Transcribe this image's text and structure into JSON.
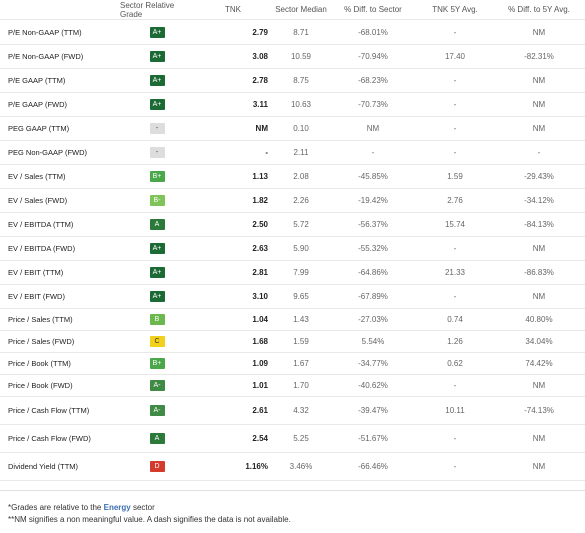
{
  "header": {
    "grade": "Sector Relative Grade",
    "tnk": "TNK",
    "median": "Sector Median",
    "diff": "% Diff. to Sector",
    "five_year": "TNK 5Y Avg.",
    "diff_five_year": "% Diff. to 5Y Avg."
  },
  "grade_colors": {
    "A+": "#1d6b34",
    "A": "#2c7a3a",
    "A-": "#3f8a44",
    "B+": "#4aa84a",
    "B": "#6ab84e",
    "B-": "#7fc35a",
    "C": "#f2d11c",
    "D": "#d53b2c",
    "-": "#dddddd"
  },
  "rows": [
    {
      "metric": "P/E Non-GAAP (TTM)",
      "grade": "A+",
      "tnk": "2.79",
      "median": "8.71",
      "diff": "-68.01%",
      "five_year": "-",
      "diff_five_year": "NM"
    },
    {
      "metric": "P/E Non-GAAP (FWD)",
      "grade": "A+",
      "tnk": "3.08",
      "median": "10.59",
      "diff": "-70.94%",
      "five_year": "17.40",
      "diff_five_year": "-82.31%"
    },
    {
      "metric": "P/E GAAP (TTM)",
      "grade": "A+",
      "tnk": "2.78",
      "median": "8.75",
      "diff": "-68.23%",
      "five_year": "-",
      "diff_five_year": "NM"
    },
    {
      "metric": "P/E GAAP (FWD)",
      "grade": "A+",
      "tnk": "3.11",
      "median": "10.63",
      "diff": "-70.73%",
      "five_year": "-",
      "diff_five_year": "NM"
    },
    {
      "metric": "PEG GAAP (TTM)",
      "grade": "-",
      "tnk": "NM",
      "median": "0.10",
      "diff": "NM",
      "five_year": "-",
      "diff_five_year": "NM"
    },
    {
      "metric": "PEG Non-GAAP (FWD)",
      "grade": "-",
      "tnk": "-",
      "median": "2.11",
      "diff": "-",
      "five_year": "-",
      "diff_five_year": "-"
    },
    {
      "metric": "EV / Sales (TTM)",
      "grade": "B+",
      "tnk": "1.13",
      "median": "2.08",
      "diff": "-45.85%",
      "five_year": "1.59",
      "diff_five_year": "-29.43%"
    },
    {
      "metric": "EV / Sales (FWD)",
      "grade": "B-",
      "tnk": "1.82",
      "median": "2.26",
      "diff": "-19.42%",
      "five_year": "2.76",
      "diff_five_year": "-34.12%"
    },
    {
      "metric": "EV / EBITDA (TTM)",
      "grade": "A",
      "tnk": "2.50",
      "median": "5.72",
      "diff": "-56.37%",
      "five_year": "15.74",
      "diff_five_year": "-84.13%"
    },
    {
      "metric": "EV / EBITDA (FWD)",
      "grade": "A+",
      "tnk": "2.63",
      "median": "5.90",
      "diff": "-55.32%",
      "five_year": "-",
      "diff_five_year": "NM"
    },
    {
      "metric": "EV / EBIT (TTM)",
      "grade": "A+",
      "tnk": "2.81",
      "median": "7.99",
      "diff": "-64.86%",
      "five_year": "21.33",
      "diff_five_year": "-86.83%"
    },
    {
      "metric": "EV / EBIT (FWD)",
      "grade": "A+",
      "tnk": "3.10",
      "median": "9.65",
      "diff": "-67.89%",
      "five_year": "-",
      "diff_five_year": "NM"
    },
    {
      "metric": "Price / Sales (TTM)",
      "grade": "B",
      "tnk": "1.04",
      "median": "1.43",
      "diff": "-27.03%",
      "five_year": "0.74",
      "diff_five_year": "40.80%"
    },
    {
      "metric": "Price / Sales (FWD)",
      "grade": "C",
      "tnk": "1.68",
      "median": "1.59",
      "diff": "5.54%",
      "five_year": "1.26",
      "diff_five_year": "34.04%"
    },
    {
      "metric": "Price / Book (TTM)",
      "grade": "B+",
      "tnk": "1.09",
      "median": "1.67",
      "diff": "-34.77%",
      "five_year": "0.62",
      "diff_five_year": "74.42%"
    },
    {
      "metric": "Price / Book (FWD)",
      "grade": "A-",
      "tnk": "1.01",
      "median": "1.70",
      "diff": "-40.62%",
      "five_year": "-",
      "diff_five_year": "NM"
    },
    {
      "metric": "Price / Cash Flow (TTM)",
      "grade": "A-",
      "tnk": "2.61",
      "median": "4.32",
      "diff": "-39.47%",
      "five_year": "10.11",
      "diff_five_year": "-74.13%"
    },
    {
      "metric": "Price / Cash Flow (FWD)",
      "grade": "A",
      "tnk": "2.54",
      "median": "5.25",
      "diff": "-51.67%",
      "five_year": "-",
      "diff_five_year": "NM"
    },
    {
      "metric": "Dividend Yield (TTM)",
      "grade": "D",
      "tnk": "1.16%",
      "median": "3.46%",
      "diff": "-66.46%",
      "five_year": "-",
      "diff_five_year": "NM"
    }
  ],
  "footer": {
    "line1_prefix": "*Grades are relative to the ",
    "line1_sector": "Energy",
    "line1_suffix": " sector",
    "line2": "**NM signifies a non meaningful value. A dash signifies the data is not available."
  }
}
